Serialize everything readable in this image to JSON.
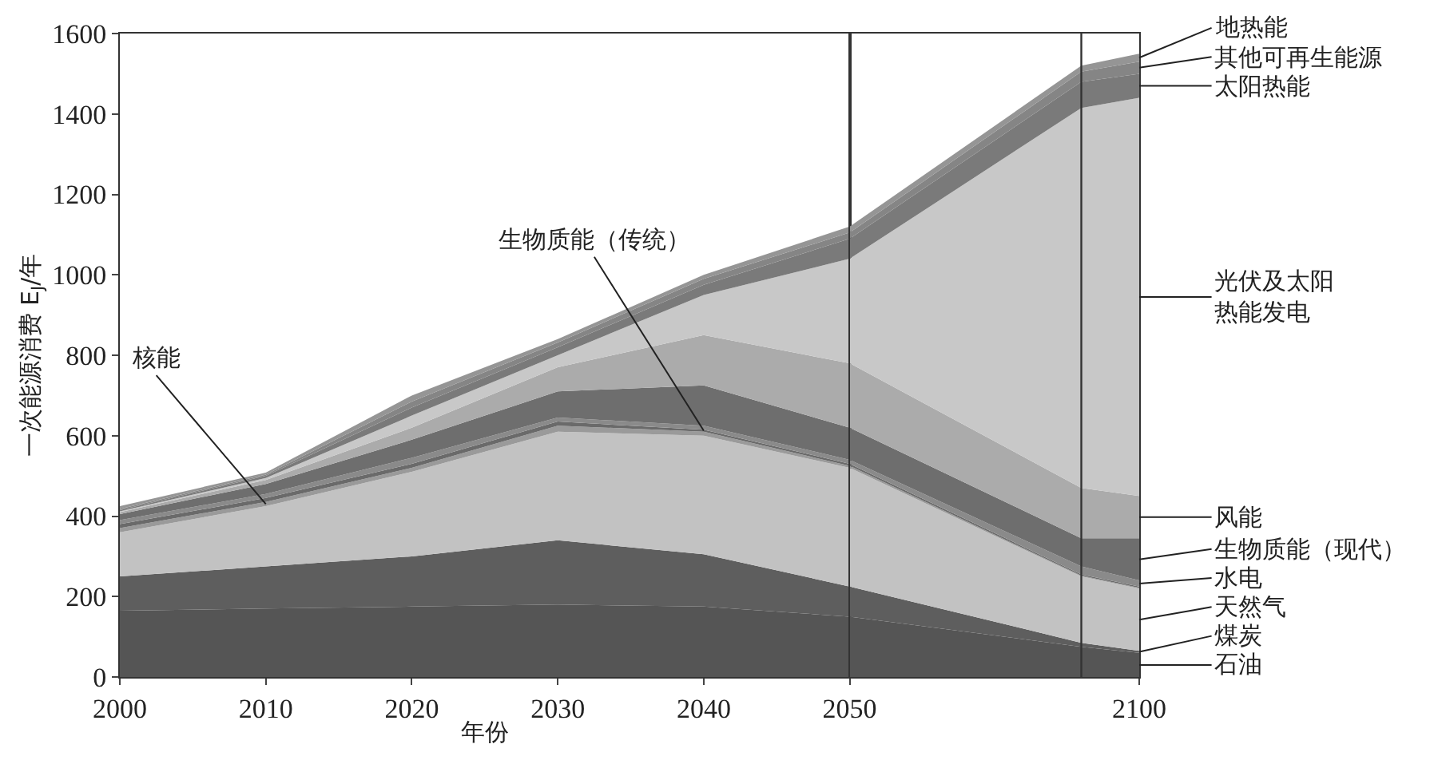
{
  "chart_data": [
    {
      "type": "area",
      "stacked": true,
      "xlabel": "年份",
      "ylabel": "一次能源消费 E$_{J}$/年",
      "x": [
        2000,
        2010,
        2020,
        2030,
        2040,
        2050
      ],
      "xlim": [
        2000,
        2050
      ],
      "xticks": [
        2000,
        2010,
        2020,
        2030,
        2040
      ],
      "ylim": [
        0,
        1600
      ],
      "yticks": [
        0,
        200,
        400,
        600,
        800,
        1000,
        1200,
        1400,
        1600
      ],
      "series": [
        {
          "color": "#555555",
          "values": [
            165,
            170,
            175,
            180,
            175,
            150
          ]
        },
        {
          "color": "#5e5e5e",
          "values": [
            85,
            105,
            125,
            160,
            130,
            75
          ]
        },
        {
          "color": "#c2c2c2",
          "values": [
            110,
            150,
            210,
            270,
            295,
            295
          ]
        },
        {
          "name": "核能",
          "color": "#9a9a9a",
          "values": [
            10,
            10,
            10,
            15,
            10,
            5
          ]
        },
        {
          "name": "生物质能（传统）",
          "color": "#6a6a6a",
          "values": [
            10,
            10,
            10,
            10,
            5,
            5
          ]
        },
        {
          "color": "#8a8a8a",
          "values": [
            10,
            10,
            15,
            10,
            10,
            10
          ]
        },
        {
          "color": "#6e6e6e",
          "values": [
            15,
            25,
            45,
            65,
            100,
            80
          ]
        },
        {
          "color": "#ababab",
          "values": [
            5,
            10,
            30,
            60,
            125,
            160
          ]
        },
        {
          "color": "#c8c8c8",
          "values": [
            2,
            5,
            30,
            30,
            100,
            260
          ]
        },
        {
          "color": "#7a7a7a",
          "values": [
            3,
            5,
            20,
            20,
            25,
            50
          ]
        },
        {
          "color": "#858585",
          "values": [
            3,
            3,
            15,
            12,
            15,
            15
          ]
        },
        {
          "color": "#959595",
          "values": [
            7,
            5,
            15,
            8,
            10,
            15
          ]
        }
      ]
    },
    {
      "type": "area",
      "stacked": true,
      "x": [
        2050,
        2090,
        2100
      ],
      "xlim": [
        2050,
        2100
      ],
      "xticks": [
        2050,
        2100
      ],
      "ylim": [
        0,
        1600
      ],
      "yticks": [
        0,
        200,
        400,
        600,
        800,
        1000,
        1200,
        1400,
        1600
      ],
      "tick_labels": "x",
      "ref_lines": [
        {
          "axis": "x",
          "value": 2090,
          "color": "#333333"
        }
      ],
      "series": [
        {
          "name": "石油",
          "color": "#555555",
          "values": [
            150,
            75,
            60
          ]
        },
        {
          "name": "煤炭",
          "color": "#5e5e5e",
          "values": [
            75,
            10,
            5
          ]
        },
        {
          "name": "天然气",
          "color": "#c2c2c2",
          "values": [
            295,
            165,
            155
          ]
        },
        {
          "color": "#9a9a9a",
          "values": [
            5,
            2,
            2
          ]
        },
        {
          "color": "#6a6a6a",
          "values": [
            5,
            3,
            3
          ]
        },
        {
          "name": "水电",
          "color": "#8a8a8a",
          "values": [
            10,
            20,
            15
          ]
        },
        {
          "name": "生物质能（现代）",
          "color": "#6e6e6e",
          "values": [
            80,
            70,
            105
          ]
        },
        {
          "name": "风能",
          "color": "#ababab",
          "values": [
            160,
            125,
            105
          ]
        },
        {
          "name": "光伏及太阳热能发电",
          "color": "#c8c8c8",
          "values": [
            260,
            945,
            990
          ]
        },
        {
          "name": "太阳热能",
          "color": "#7a7a7a",
          "values": [
            50,
            65,
            60
          ]
        },
        {
          "name": "其他可再生能源",
          "color": "#858585",
          "values": [
            15,
            25,
            30
          ]
        },
        {
          "name": "地热能",
          "color": "#959595",
          "values": [
            15,
            15,
            20
          ]
        }
      ]
    }
  ]
}
